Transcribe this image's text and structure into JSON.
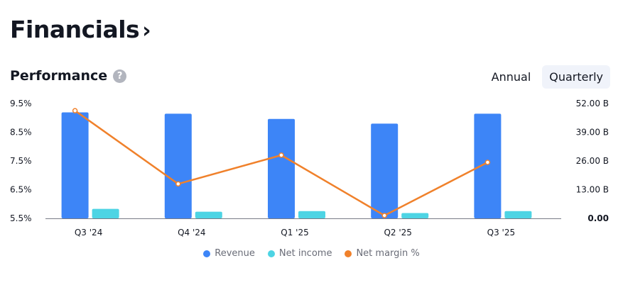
{
  "header": {
    "title": "Financials",
    "chevron": "›"
  },
  "section": {
    "title": "Performance",
    "help_icon": "?"
  },
  "toggle": {
    "annual": "Annual",
    "quarterly": "Quarterly",
    "selected": "Quarterly"
  },
  "colors": {
    "revenue": "#3d85f7",
    "net_income": "#4dd4e4",
    "net_margin": "#f0812b"
  },
  "chart_data": {
    "type": "bar",
    "categories": [
      "Q3 '24",
      "Q4 '24",
      "Q1 '25",
      "Q2 '25",
      "Q3 '25"
    ],
    "series": [
      {
        "name": "Revenue",
        "axis": "right",
        "values": [
          48.0,
          47.4,
          45.0,
          42.9,
          47.4
        ]
      },
      {
        "name": "Net income",
        "axis": "right",
        "values": [
          4.3,
          3.0,
          3.3,
          2.4,
          3.3
        ]
      },
      {
        "name": "Net margin %",
        "axis": "left",
        "type": "line",
        "values": [
          9.25,
          6.7,
          7.7,
          5.6,
          7.45
        ]
      }
    ],
    "left_axis": {
      "ticks": [
        "9.5%",
        "8.5%",
        "7.5%",
        "6.5%",
        "5.5%"
      ],
      "min": 5.5,
      "max": 9.5
    },
    "right_axis": {
      "ticks": [
        "52.00 B",
        "39.00 B",
        "26.00 B",
        "13.00 B",
        "0.00"
      ],
      "min": 0,
      "max": 52
    },
    "legend_position": "bottom",
    "grid": false
  }
}
